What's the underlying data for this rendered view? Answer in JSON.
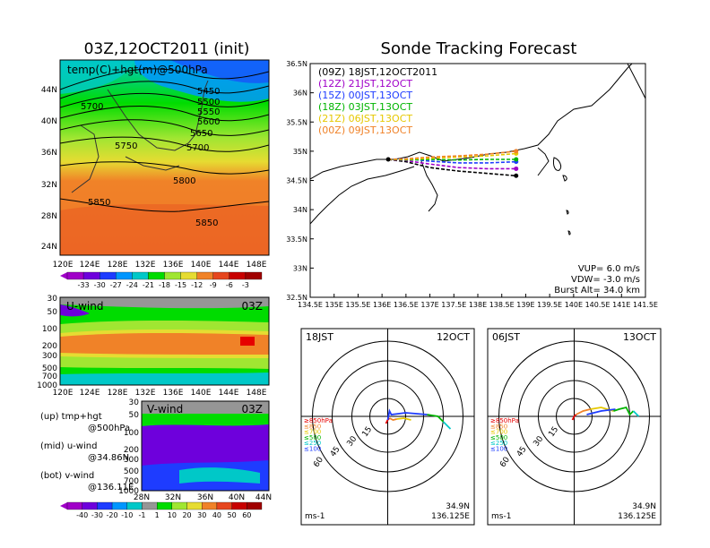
{
  "left_title": "03Z,12OCT2011 (init)",
  "right_title": "Sonde Tracking Forecast",
  "top_panel": {
    "label": "temp(C)+hgt(m)@500hPa",
    "lat_labels": [
      "44N",
      "40N",
      "36N",
      "32N",
      "28N",
      "24N"
    ],
    "lon_labels": [
      "120E",
      "124E",
      "128E",
      "132E",
      "136E",
      "140E",
      "144E",
      "148E"
    ],
    "contour_labels": [
      "5450",
      "5500",
      "5550",
      "5600",
      "5650",
      "5700",
      "5700",
      "5750",
      "5800",
      "5850",
      "5850"
    ],
    "colorbar_labels": [
      "-33",
      "-30",
      "-27",
      "-24",
      "-21",
      "-18",
      "-15",
      "-12",
      "-9",
      "-6",
      "-3"
    ],
    "colorbar_colors": [
      "#a000c8",
      "#6e00dc",
      "#1e3cff",
      "#0096ff",
      "#00c8c8",
      "#00dc00",
      "#a0e632",
      "#e6dc32",
      "#f08228",
      "#e6461e",
      "#c80000"
    ]
  },
  "uwind_panel": {
    "label": "U-wind",
    "time": "03Z",
    "p_labels": [
      "30",
      "50",
      "100",
      "200",
      "300",
      "500",
      "700",
      "1000"
    ],
    "lon_labels": [
      "120E",
      "124E",
      "128E",
      "132E",
      "136E",
      "140E",
      "144E",
      "148E"
    ]
  },
  "vwind_panel": {
    "label": "V-wind",
    "time": "03Z",
    "p_labels": [
      "30",
      "50",
      "100",
      "200",
      "300",
      "500",
      "700",
      "1000"
    ],
    "lat_labels": [
      "28N",
      "32N",
      "36N",
      "40N",
      "44N"
    ]
  },
  "legend_text": [
    {
      "a": "(up)  tmp+hgt",
      "b": "@500hPa"
    },
    {
      "a": "(mid)  u-wind",
      "b": "@34.86N"
    },
    {
      "a": "(bot)  v-wind",
      "b": "@136.11E"
    }
  ],
  "wind_colorbar": {
    "labels": [
      "-40",
      "-30",
      "-20",
      "-10",
      "-1",
      "1",
      "10",
      "20",
      "30",
      "40",
      "50",
      "60"
    ],
    "colors": [
      "#a000c8",
      "#6e00dc",
      "#1e3cff",
      "#0096ff",
      "#00c8c8",
      "#969696",
      "#00dc00",
      "#a0e632",
      "#e6dc32",
      "#f08228",
      "#e6461e",
      "#c80000"
    ]
  },
  "track_legend": [
    {
      "label": "(09Z)  18JST,12OCT2011",
      "color": "#000000"
    },
    {
      "label": "(12Z)  21JST,12OCT",
      "color": "#a000c8"
    },
    {
      "label": "(15Z)  00JST,13OCT",
      "color": "#1e3cff"
    },
    {
      "label": "(18Z)  03JST,13OCT",
      "color": "#00b400"
    },
    {
      "label": "(21Z)  06JST,13OCT",
      "color": "#e6c800"
    },
    {
      "label": "(00Z)  09JST,13OCT",
      "color": "#f08228"
    }
  ],
  "track_footer": [
    "VUP=  6.0  m/s",
    "VDW=  -3.0  m/s",
    "Burst Alt=  34.0  km"
  ],
  "chart_data": {
    "type": "line",
    "title": "Sonde Tracking Forecast",
    "xlim": [
      134.5,
      141.5
    ],
    "ylim": [
      32.5,
      36.5
    ],
    "x_ticks": [
      "134.5E",
      "135E",
      "135.5E",
      "136E",
      "136.5E",
      "137E",
      "137.5E",
      "138E",
      "138.5E",
      "139E",
      "139.5E",
      "140E",
      "140.5E",
      "141E",
      "141.5E"
    ],
    "y_ticks": [
      "32.5N",
      "33N",
      "33.5N",
      "34N",
      "34.5N",
      "35N",
      "35.5N",
      "36N",
      "36.5N"
    ],
    "series": [
      {
        "name": "(09Z)  18JST,12OCT2011",
        "color": "#000000",
        "dash": true,
        "x": [
          136.13,
          136.5,
          137.0,
          137.6,
          138.2,
          138.8
        ],
        "y": [
          34.86,
          34.82,
          34.72,
          34.66,
          34.62,
          34.58
        ]
      },
      {
        "name": "(12Z)  21JST,12OCT",
        "color": "#a000c8",
        "dash": true,
        "x": [
          136.13,
          136.5,
          137.0,
          137.6,
          138.2,
          138.8
        ],
        "y": [
          34.86,
          34.84,
          34.78,
          34.72,
          34.7,
          34.7
        ]
      },
      {
        "name": "(15Z)  00JST,13OCT",
        "color": "#1e3cff",
        "dash": true,
        "x": [
          136.13,
          136.5,
          137.0,
          137.6,
          138.2,
          138.8
        ],
        "y": [
          34.86,
          34.87,
          34.83,
          34.8,
          34.8,
          34.82
        ]
      },
      {
        "name": "(18Z)  03JST,13OCT",
        "color": "#00b400",
        "dash": true,
        "x": [
          136.13,
          136.5,
          137.0,
          137.6,
          138.2,
          138.8
        ],
        "y": [
          34.86,
          34.85,
          34.86,
          34.85,
          34.86,
          34.86
        ]
      },
      {
        "name": "(21Z)  06JST,13OCT",
        "color": "#e6c800",
        "dash": true,
        "x": [
          136.13,
          136.5,
          137.0,
          137.6,
          138.2,
          138.8
        ],
        "y": [
          34.86,
          34.86,
          34.88,
          34.9,
          34.92,
          34.96
        ]
      },
      {
        "name": "(00Z)  09JST,13OCT",
        "color": "#f08228",
        "dash": true,
        "x": [
          136.13,
          136.5,
          137.0,
          137.6,
          138.2,
          138.8
        ],
        "y": [
          34.86,
          34.87,
          34.9,
          34.92,
          34.95,
          35.0
        ]
      }
    ]
  },
  "hodo_left": {
    "time": "18JST",
    "date": "12OCT",
    "loc1": "34.9N",
    "loc2": "136.125E",
    "unit": "ms-1",
    "ring_labels": [
      "15",
      "30",
      "45",
      "60"
    ],
    "press_legend": [
      "≥850hPa",
      "≤850",
      "≤700",
      "≤500",
      "≤250",
      "≤100"
    ],
    "press_colors": [
      "#e60000",
      "#f08228",
      "#e6c800",
      "#00b400",
      "#00c8c8",
      "#1e3cff"
    ]
  },
  "hodo_right": {
    "time": "06JST",
    "date": "13OCT",
    "loc1": "34.9N",
    "loc2": "136.125E",
    "unit": "ms-1",
    "ring_labels": [
      "15",
      "30",
      "45",
      "60"
    ],
    "press_legend": [
      "≥850hPa",
      "≤850",
      "≤700",
      "≤500",
      "≤250",
      "≤100"
    ],
    "press_colors": [
      "#e60000",
      "#f08228",
      "#e6c800",
      "#00b400",
      "#00c8c8",
      "#1e3cff"
    ]
  }
}
